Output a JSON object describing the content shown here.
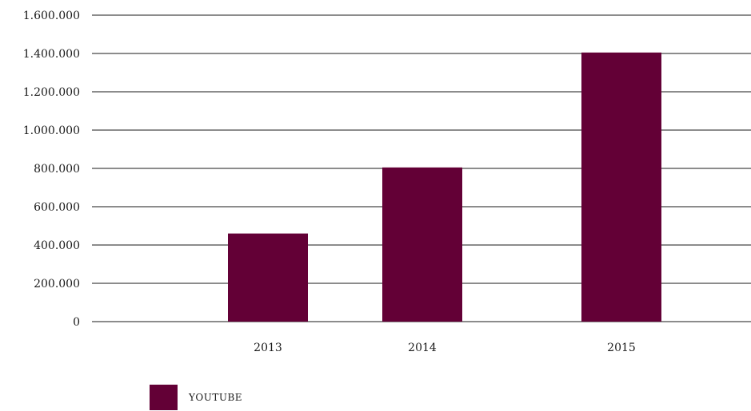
{
  "chart_data": {
    "type": "bar",
    "categories": [
      "2013",
      "2014",
      "2015"
    ],
    "series": [
      {
        "name": "YOUTUBE",
        "values": [
          460000,
          805000,
          1405000
        ],
        "color": "#630036"
      }
    ],
    "y_ticks": [
      "0",
      "200.000",
      "400.000",
      "600.000",
      "800.000",
      "1.000.000",
      "1.200.000",
      "1.400.000",
      "1.600.000"
    ],
    "ylim": [
      0,
      1600000
    ],
    "grid": true,
    "legend_position": "bottom-left"
  }
}
